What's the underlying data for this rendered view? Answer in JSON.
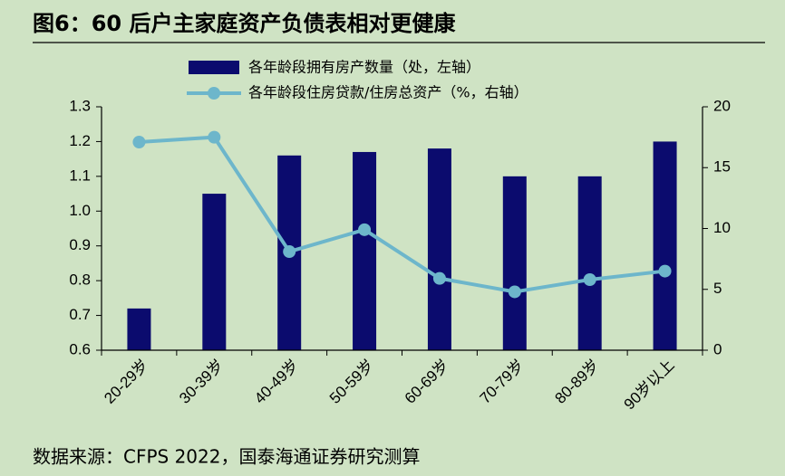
{
  "chart_data": {
    "type": "bar",
    "title": "图6：60 后户主家庭资产负债表相对更健康",
    "source": "数据来源：CFPS 2022，国泰海通证券研究测算",
    "categories": [
      "20-29岁",
      "30-39岁",
      "40-49岁",
      "50-59岁",
      "60-69岁",
      "70-79岁",
      "80-89岁",
      "90岁以上"
    ],
    "series": [
      {
        "name": "各年龄段拥有房产数量（处，左轴）",
        "type": "bar",
        "color": "#0b0b6e",
        "values": [
          0.72,
          1.05,
          1.16,
          1.17,
          1.18,
          1.1,
          1.1,
          1.2
        ]
      },
      {
        "name": "各年龄段住房贷款/住房总资产（%，右轴）",
        "type": "line",
        "axis": "y2",
        "color": "#6db6cb",
        "values": [
          17.1,
          17.5,
          8.1,
          9.9,
          5.9,
          4.8,
          5.8,
          6.5
        ]
      }
    ],
    "ylim": [
      0.6,
      1.3
    ],
    "yticks": [
      0.6,
      0.7,
      0.8,
      0.9,
      {
        "value": 1,
        "label": "1.0"
      },
      1.1,
      1.2,
      1.3
    ],
    "y2lim": [
      0,
      20
    ],
    "y2ticks": [
      0,
      5,
      10,
      15,
      20
    ],
    "grid": false,
    "legend": "top"
  }
}
